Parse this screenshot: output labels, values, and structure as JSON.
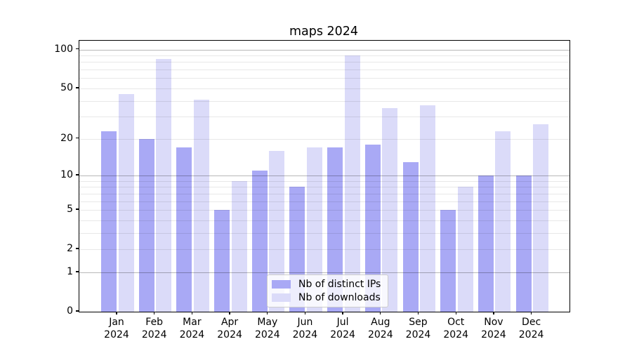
{
  "title": "maps 2024",
  "chart_data": {
    "type": "bar",
    "title": "maps 2024",
    "categories": [
      "Jan 2024",
      "Feb 2024",
      "Mar 2024",
      "Apr 2024",
      "May 2024",
      "Jun 2024",
      "Jul 2024",
      "Aug 2024",
      "Sep 2024",
      "Oct 2024",
      "Nov 2024",
      "Dec 2024"
    ],
    "series": [
      {
        "name": "Nb of distinct IPs",
        "color": "#a9a9f5",
        "values": [
          23,
          20,
          17,
          5,
          11,
          8,
          17,
          18,
          13,
          5,
          10,
          10
        ]
      },
      {
        "name": "Nb of downloads",
        "color": "#dbdbf9",
        "values": [
          45,
          85,
          41,
          9,
          16,
          17,
          90,
          35,
          37,
          8,
          23,
          26
        ]
      }
    ],
    "xlabel": "",
    "ylabel": "",
    "yscale": "log1p",
    "ylim": [
      0,
      117
    ],
    "yticks": [
      0,
      1,
      2,
      5,
      10,
      20,
      50,
      100
    ],
    "minor_gridlines": [
      2,
      3,
      4,
      5,
      6,
      7,
      8,
      9,
      20,
      30,
      40,
      50,
      60,
      70,
      80,
      90
    ],
    "major_gridlines": [
      1,
      10,
      100
    ],
    "grid": true,
    "legend_position": "lower center"
  },
  "colors": {
    "background": "#ffffff",
    "spine": "#000000",
    "grid_minor": "#e8e8e8",
    "grid_major": "#b8b8b8",
    "bar_distinct_ips": "#a9a9f5",
    "bar_downloads": "#dbdbf9"
  }
}
